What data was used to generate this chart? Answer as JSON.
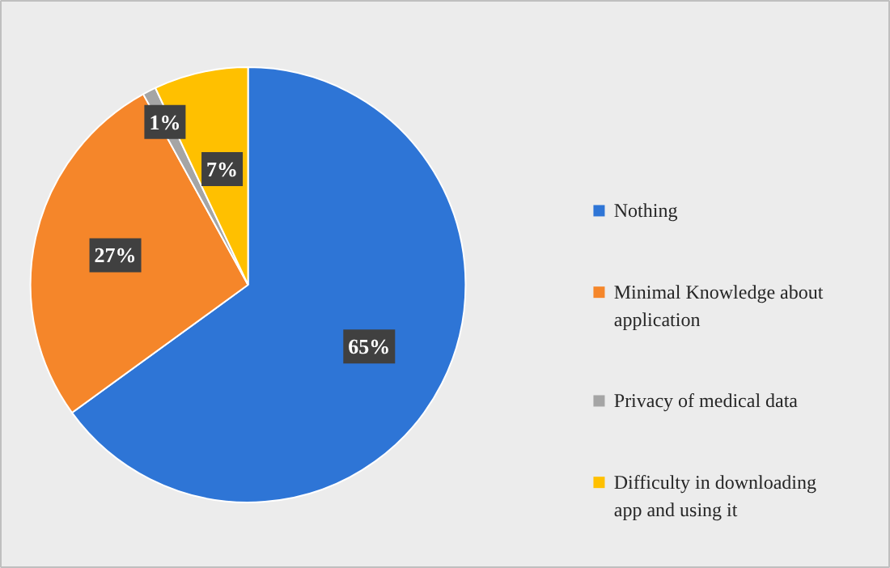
{
  "chart_data": {
    "type": "pie",
    "categories": [
      "Nothing",
      "Minimal Knowledge about application",
      "Privacy of medical data",
      "Difficulty in downloading app and using it"
    ],
    "values": [
      65,
      27,
      1,
      7
    ],
    "value_labels": [
      "65%",
      "27%",
      "1%",
      "7%"
    ],
    "colors": [
      "#2e75d6",
      "#f5862a",
      "#a5a5a5",
      "#ffc000"
    ],
    "legend": "right"
  }
}
